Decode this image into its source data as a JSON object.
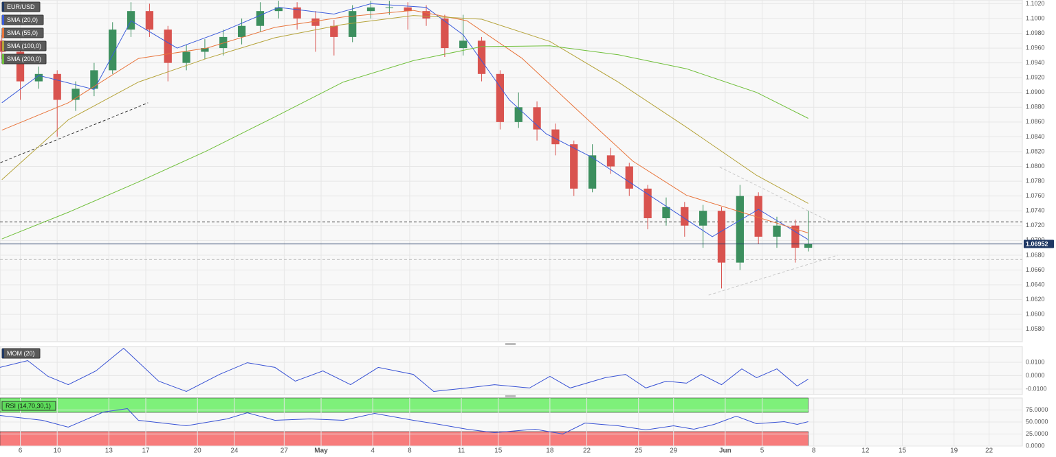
{
  "chart_data": [
    {
      "type": "candlestick",
      "title": "EUR/USD",
      "up_color": "#3c8f5e",
      "down_color": "#d9534f",
      "x": [
        -1,
        0,
        1,
        2,
        3,
        4,
        5,
        6,
        7,
        8,
        9,
        10,
        11,
        12,
        13,
        14,
        15,
        16,
        17,
        18,
        19,
        20,
        21,
        22,
        23,
        24,
        25,
        26,
        27,
        28,
        29,
        30,
        31,
        32,
        33,
        34,
        35,
        36,
        37,
        38,
        39,
        40,
        41,
        42,
        42.7
      ],
      "open": [
        1.097,
        1.0955,
        1.0915,
        1.0925,
        1.089,
        1.0905,
        1.093,
        1.0985,
        1.101,
        1.0985,
        1.094,
        1.0955,
        1.096,
        1.0975,
        1.099,
        1.101,
        1.1015,
        1.1,
        1.099,
        1.0975,
        1.101,
        1.1015,
        1.1015,
        1.101,
        1.1,
        1.096,
        1.097,
        1.0925,
        1.086,
        1.088,
        1.085,
        1.083,
        1.077,
        1.0815,
        1.08,
        1.077,
        1.073,
        1.0745,
        1.072,
        1.074,
        1.067,
        1.076,
        1.0705,
        1.072,
        1.069
      ],
      "high": [
        1.0978,
        1.0962,
        1.0935,
        1.093,
        1.0915,
        1.094,
        1.0995,
        1.1022,
        1.102,
        1.099,
        1.0965,
        1.0972,
        1.0985,
        1.1,
        1.1022,
        1.1024,
        1.1022,
        1.101,
        1.0998,
        1.1018,
        1.1024,
        1.1024,
        1.1022,
        1.1018,
        1.1005,
        1.1005,
        1.0975,
        1.093,
        1.09,
        1.0888,
        1.0858,
        1.0835,
        1.083,
        1.0825,
        1.0805,
        1.0775,
        1.0758,
        1.0752,
        1.0748,
        1.0745,
        1.0775,
        1.0765,
        1.0732,
        1.0728,
        1.074
      ],
      "low": [
        1.0945,
        1.089,
        1.0905,
        1.084,
        1.0875,
        1.0895,
        1.0925,
        1.0975,
        1.0975,
        1.0915,
        1.093,
        1.0945,
        1.095,
        1.0965,
        1.0982,
        1.1,
        1.0985,
        1.0955,
        1.095,
        1.0968,
        1.1,
        1.1005,
        1.0985,
        1.099,
        1.0948,
        1.095,
        1.0915,
        1.085,
        1.0852,
        1.0835,
        1.0815,
        1.076,
        1.0765,
        1.079,
        1.076,
        1.0715,
        1.072,
        1.0705,
        1.069,
        1.0635,
        1.066,
        1.0695,
        1.069,
        1.067,
        1.0685
      ],
      "close": [
        1.0955,
        1.0915,
        1.0925,
        1.089,
        1.0905,
        1.093,
        1.0985,
        1.101,
        1.0985,
        1.094,
        1.0955,
        1.096,
        1.0975,
        1.099,
        1.101,
        1.1015,
        1.1,
        1.099,
        1.0975,
        1.101,
        1.1015,
        1.1015,
        1.101,
        1.1,
        1.096,
        1.097,
        1.0925,
        1.086,
        1.088,
        1.085,
        1.083,
        1.077,
        1.0815,
        1.08,
        1.077,
        1.073,
        1.0745,
        1.072,
        1.074,
        1.067,
        1.076,
        1.0705,
        1.072,
        1.069,
        1.06952
      ],
      "overlays": [
        {
          "name": "SMA (20,0)",
          "color": "#3b5bdb",
          "x": [
            -1,
            1,
            4,
            6,
            8.5,
            11,
            14,
            17,
            19,
            22,
            24,
            26.5,
            28.5,
            31,
            33,
            35.5,
            37.5,
            40,
            42.7
          ],
          "values": [
            1.0886,
            1.0923,
            1.0904,
            1.0997,
            1.096,
            1.0983,
            1.1015,
            1.1006,
            1.102,
            1.1015,
            1.0978,
            1.089,
            1.0844,
            1.0812,
            1.0779,
            1.0738,
            1.0705,
            1.0742,
            1.0701
          ]
        },
        {
          "name": "SMA (55,0)",
          "color": "#e8743b",
          "x": [
            -1,
            2.6,
            6.4,
            10.1,
            13.8,
            17.5,
            21.3,
            24.2,
            27.2,
            30.2,
            33.2,
            36.1,
            39.1,
            42.7
          ],
          "values": [
            1.0849,
            1.0886,
            1.0946,
            1.096,
            1.0988,
            1.1002,
            1.1011,
            1.0997,
            1.0946,
            1.0876,
            1.0807,
            1.0761,
            1.0738,
            1.071
          ]
        },
        {
          "name": "SMA (100,0)",
          "color": "#b5a33a",
          "x": [
            -1,
            2.6,
            6.4,
            10.1,
            13.8,
            17.5,
            21.3,
            25.0,
            28.7,
            32.4,
            36.1,
            39.9,
            42.7
          ],
          "values": [
            1.0782,
            1.0863,
            1.0914,
            1.0946,
            1.0974,
            1.0992,
            1.1004,
            1.0999,
            1.0969,
            1.0914,
            1.0853,
            1.0788,
            1.075
          ]
        },
        {
          "name": "SMA (200,0)",
          "color": "#6fbf3a",
          "x": [
            -1,
            2.6,
            6.4,
            10.1,
            13.8,
            17.5,
            21.3,
            25.0,
            28.7,
            32.4,
            36.1,
            39.9,
            42.7
          ],
          "values": [
            1.0702,
            1.0738,
            1.0779,
            1.0821,
            1.0867,
            1.0914,
            1.0943,
            1.0962,
            1.0963,
            1.0951,
            1.0932,
            1.09,
            1.0865
          ]
        }
      ],
      "hlines": [
        {
          "value": 1.0725,
          "color": "#333333"
        },
        {
          "value": 1.0674,
          "color": "#bbbbbb"
        }
      ],
      "trendlines": [
        {
          "x": [
            -1.08,
            6.92
          ],
          "values": [
            1.0805,
            1.0886
          ],
          "color": "#333333"
        },
        {
          "x": [
            37.9,
            44.0
          ],
          "values": [
            1.0799,
            1.0724
          ],
          "color": "#c8c8c8"
        },
        {
          "x": [
            37.3,
            44.3
          ],
          "values": [
            1.0626,
            1.068
          ],
          "color": "#c8c8c8"
        }
      ],
      "last_price": 1.06952,
      "last_price_color": "#1f3864",
      "xlim": [
        -1.1,
        54.3
      ],
      "xticks": [
        {
          "value": 0,
          "label": "6"
        },
        {
          "value": 2.0,
          "label": "10"
        },
        {
          "value": 4.8,
          "label": "13"
        },
        {
          "value": 6.8,
          "label": "17"
        },
        {
          "value": 9.6,
          "label": "20"
        },
        {
          "value": 11.6,
          "label": "24"
        },
        {
          "value": 14.3,
          "label": "27"
        },
        {
          "value": 16.3,
          "label": "May"
        },
        {
          "value": 19.1,
          "label": "4"
        },
        {
          "value": 21.1,
          "label": "8"
        },
        {
          "value": 23.9,
          "label": "11"
        },
        {
          "value": 25.9,
          "label": "15"
        },
        {
          "value": 28.7,
          "label": "18"
        },
        {
          "value": 30.7,
          "label": "22"
        },
        {
          "value": 33.5,
          "label": "25"
        },
        {
          "value": 35.4,
          "label": "29"
        },
        {
          "value": 38.2,
          "label": "Jun"
        },
        {
          "value": 40.2,
          "label": "5"
        },
        {
          "value": 43.0,
          "label": "8"
        },
        {
          "value": 45.8,
          "label": "12"
        },
        {
          "value": 47.8,
          "label": "15"
        },
        {
          "value": 50.6,
          "label": "19"
        },
        {
          "value": 52.5,
          "label": "22"
        }
      ],
      "ylim": [
        1.0563,
        1.1025
      ],
      "yticks": [
        {
          "value": 1.102,
          "label": "1.1020"
        },
        {
          "value": 1.1,
          "label": "1.1000"
        },
        {
          "value": 1.098,
          "label": "1.0980"
        },
        {
          "value": 1.096,
          "label": "1.0960"
        },
        {
          "value": 1.094,
          "label": "1.0940"
        },
        {
          "value": 1.092,
          "label": "1.0920"
        },
        {
          "value": 1.09,
          "label": "1.0900"
        },
        {
          "value": 1.088,
          "label": "1.0880"
        },
        {
          "value": 1.086,
          "label": "1.0860"
        },
        {
          "value": 1.084,
          "label": "1.0840"
        },
        {
          "value": 1.082,
          "label": "1.0820"
        },
        {
          "value": 1.08,
          "label": "1.0800"
        },
        {
          "value": 1.078,
          "label": "1.0780"
        },
        {
          "value": 1.076,
          "label": "1.0760"
        },
        {
          "value": 1.074,
          "label": "1.0740"
        },
        {
          "value": 1.072,
          "label": "1.0720"
        },
        {
          "value": 1.07,
          "label": "1.0700"
        },
        {
          "value": 1.068,
          "label": "1.0680"
        },
        {
          "value": 1.066,
          "label": "1.0660"
        },
        {
          "value": 1.064,
          "label": "1.0640"
        },
        {
          "value": 1.062,
          "label": "1.0620"
        },
        {
          "value": 1.06,
          "label": "1.0600"
        },
        {
          "value": 1.058,
          "label": "1.0580"
        }
      ],
      "grid": true
    },
    {
      "type": "line",
      "title": "MOM (20)",
      "color": "#3650d4",
      "x": [
        -1.1,
        0.4,
        1.5,
        2.6,
        4.1,
        5.6,
        7.5,
        9.0,
        10.8,
        12.3,
        13.8,
        14.9,
        16.4,
        17.9,
        19.4,
        21.3,
        22.4,
        24.2,
        25.7,
        27.6,
        28.7,
        29.8,
        31.7,
        32.8,
        33.9,
        35.0,
        36.1,
        36.9,
        38.0,
        39.1,
        39.9,
        41.0,
        42.1,
        42.7
      ],
      "values": [
        0.0062,
        0.0113,
        -0.0005,
        -0.0067,
        0.0036,
        0.0205,
        -0.0041,
        -0.0118,
        0.001,
        0.0097,
        0.0062,
        -0.0041,
        0.0036,
        -0.0067,
        0.0062,
        0.001,
        -0.0118,
        -0.0092,
        -0.0067,
        -0.0092,
        -0.0005,
        -0.0092,
        -0.0015,
        0.001,
        -0.0092,
        -0.0041,
        -0.0056,
        0.001,
        -0.0067,
        0.0051,
        -0.0015,
        0.0051,
        -0.0077,
        -0.0026
      ],
      "ylim": [
        -0.0141,
        0.0218
      ],
      "yticks": [
        {
          "value": 0.01,
          "label": "0.0100"
        },
        {
          "value": 0,
          "label": "0.0000"
        },
        {
          "value": -0.01,
          "label": "-0.0100"
        }
      ],
      "grid": true
    },
    {
      "type": "line",
      "title": "RSI (14,70,30,1)",
      "color": "#3650d4",
      "x": [
        -1.1,
        1.2,
        2.6,
        4.5,
        5.8,
        6.4,
        9.0,
        11.2,
        12.3,
        13.8,
        15.7,
        17.5,
        19.2,
        21.3,
        22.7,
        24.2,
        25.7,
        27.9,
        29.4,
        30.6,
        32.4,
        33.9,
        35.4,
        36.5,
        37.6,
        38.8,
        39.9,
        41.4,
        42.1,
        42.7
      ],
      "values": [
        63.6,
        53.6,
        39.3,
        70.7,
        77.9,
        53.6,
        42.1,
        56.4,
        69.3,
        53.6,
        56.4,
        53.6,
        67.9,
        53.6,
        45.0,
        35.0,
        27.9,
        35.0,
        25.0,
        47.9,
        42.1,
        33.6,
        42.1,
        35.0,
        45.0,
        62.1,
        46.4,
        50.7,
        45.0,
        50.7
      ],
      "bands": [
        {
          "from": 70,
          "to": 100,
          "color": "#7ef07a"
        },
        {
          "from": 0,
          "to": 30,
          "color": "#f77c7c"
        }
      ],
      "ylim": [
        0,
        100
      ],
      "yticks": [
        {
          "value": 75,
          "label": "75.0000"
        },
        {
          "value": 50,
          "label": "50.0000"
        },
        {
          "value": 25,
          "label": "25.0000"
        },
        {
          "value": 0,
          "label": "0.0000"
        }
      ],
      "grid": true
    }
  ]
}
